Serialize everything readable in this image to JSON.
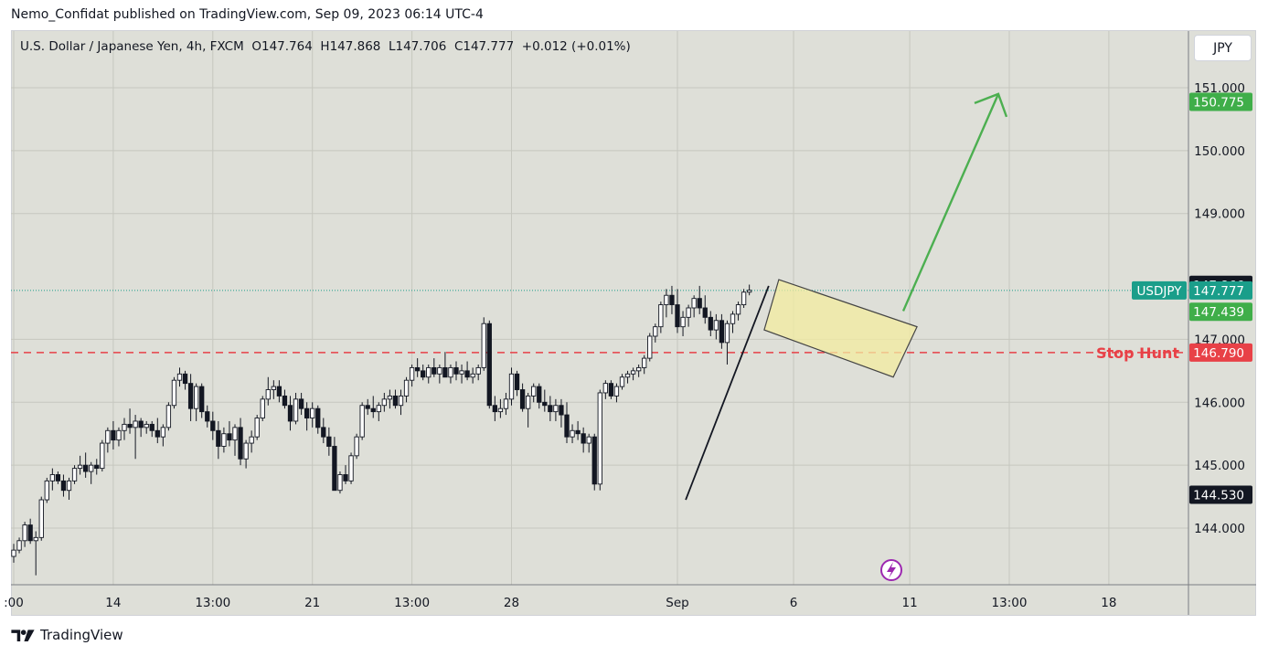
{
  "header": {
    "publisher_line": "Nemo_Confidat published on TradingView.com, Sep 09, 2023 06:14 UTC-4"
  },
  "legend": {
    "symbol": "U.S. Dollar / Japanese Yen, 4h, FXCM",
    "open_label": "O",
    "open": "147.764",
    "high_label": "H",
    "high": "147.868",
    "low_label": "L",
    "low": "147.706",
    "close_label": "C",
    "close": "147.777",
    "change": "+0.012 (+0.01%)"
  },
  "currency_button": "JPY",
  "footer": {
    "brand": "TradingView"
  },
  "chart_data": {
    "type": "candlestick",
    "symbol": "USDJPY",
    "interval": "4h",
    "y_ticks": [
      "144.000",
      "145.000",
      "146.000",
      "147.000",
      "149.000",
      "150.000",
      "151.000"
    ],
    "y_tick_values": [
      144,
      145,
      146,
      147,
      149,
      150,
      151
    ],
    "ylim": [
      143.1,
      151.9
    ],
    "x_ticks": [
      {
        "label": ":00",
        "idx": 0
      },
      {
        "label": "14",
        "idx": 18
      },
      {
        "label": "13:00",
        "idx": 36
      },
      {
        "label": "21",
        "idx": 54
      },
      {
        "label": "13:00",
        "idx": 72
      },
      {
        "label": "28",
        "idx": 90
      },
      {
        "label": "Sep",
        "idx": 120
      },
      {
        "label": "6",
        "idx": 141
      },
      {
        "label": "11",
        "idx": 162
      },
      {
        "label": "13:00",
        "idx": 180
      },
      {
        "label": "18",
        "idx": 198
      }
    ],
    "candles": [
      [
        143.55,
        143.75,
        143.45,
        143.65
      ],
      [
        143.65,
        143.85,
        143.6,
        143.8
      ],
      [
        143.8,
        144.1,
        143.7,
        144.05
      ],
      [
        144.05,
        144.15,
        143.75,
        143.8
      ],
      [
        143.8,
        143.95,
        143.25,
        143.85
      ],
      [
        143.85,
        144.5,
        143.8,
        144.45
      ],
      [
        144.45,
        144.8,
        144.4,
        144.75
      ],
      [
        144.75,
        144.95,
        144.6,
        144.85
      ],
      [
        144.85,
        144.9,
        144.7,
        144.75
      ],
      [
        144.75,
        144.85,
        144.5,
        144.6
      ],
      [
        144.6,
        144.8,
        144.45,
        144.75
      ],
      [
        144.75,
        145.0,
        144.7,
        144.95
      ],
      [
        144.95,
        145.15,
        144.85,
        145.0
      ],
      [
        145.0,
        145.2,
        144.8,
        144.9
      ],
      [
        144.9,
        145.05,
        144.7,
        145.0
      ],
      [
        145.0,
        145.1,
        144.85,
        144.95
      ],
      [
        144.95,
        145.4,
        144.9,
        145.35
      ],
      [
        145.35,
        145.6,
        145.2,
        145.55
      ],
      [
        145.55,
        145.7,
        145.25,
        145.4
      ],
      [
        145.4,
        145.6,
        145.3,
        145.55
      ],
      [
        145.55,
        145.75,
        145.4,
        145.65
      ],
      [
        145.65,
        145.9,
        145.5,
        145.6
      ],
      [
        145.6,
        145.8,
        145.1,
        145.7
      ],
      [
        145.7,
        145.75,
        145.45,
        145.6
      ],
      [
        145.6,
        145.7,
        145.5,
        145.65
      ],
      [
        145.65,
        145.7,
        145.45,
        145.55
      ],
      [
        145.55,
        145.75,
        145.35,
        145.45
      ],
      [
        145.45,
        145.65,
        145.3,
        145.6
      ],
      [
        145.6,
        146.0,
        145.55,
        145.95
      ],
      [
        145.95,
        146.4,
        145.9,
        146.35
      ],
      [
        146.35,
        146.55,
        146.25,
        146.45
      ],
      [
        146.45,
        146.5,
        146.2,
        146.3
      ],
      [
        146.3,
        146.45,
        145.7,
        145.9
      ],
      [
        145.9,
        146.3,
        145.7,
        146.25
      ],
      [
        146.25,
        146.3,
        145.75,
        145.85
      ],
      [
        145.85,
        145.95,
        145.6,
        145.7
      ],
      [
        145.7,
        145.85,
        145.4,
        145.55
      ],
      [
        145.55,
        145.7,
        145.1,
        145.3
      ],
      [
        145.3,
        145.6,
        145.2,
        145.5
      ],
      [
        145.5,
        145.7,
        145.3,
        145.4
      ],
      [
        145.4,
        145.65,
        145.15,
        145.6
      ],
      [
        145.6,
        145.75,
        145.0,
        145.1
      ],
      [
        145.1,
        145.4,
        144.95,
        145.35
      ],
      [
        145.35,
        145.55,
        145.2,
        145.45
      ],
      [
        145.45,
        145.8,
        145.4,
        145.75
      ],
      [
        145.75,
        146.1,
        145.7,
        146.05
      ],
      [
        146.05,
        146.4,
        145.95,
        146.2
      ],
      [
        146.2,
        146.35,
        146.05,
        146.25
      ],
      [
        146.25,
        146.35,
        146.0,
        146.1
      ],
      [
        146.1,
        146.2,
        145.9,
        145.95
      ],
      [
        145.95,
        146.1,
        145.55,
        145.7
      ],
      [
        145.7,
        146.15,
        145.65,
        146.05
      ],
      [
        146.05,
        146.15,
        145.8,
        145.9
      ],
      [
        145.9,
        146.0,
        145.55,
        145.75
      ],
      [
        145.75,
        146.0,
        145.6,
        145.9
      ],
      [
        145.9,
        145.95,
        145.5,
        145.6
      ],
      [
        145.6,
        145.75,
        145.35,
        145.45
      ],
      [
        145.45,
        145.6,
        145.15,
        145.3
      ],
      [
        145.3,
        145.45,
        144.6,
        144.6
      ],
      [
        144.6,
        144.9,
        144.55,
        144.85
      ],
      [
        144.85,
        145.0,
        144.7,
        144.75
      ],
      [
        144.75,
        145.2,
        144.7,
        145.15
      ],
      [
        145.15,
        145.5,
        145.1,
        145.45
      ],
      [
        145.45,
        146.0,
        145.4,
        145.95
      ],
      [
        145.95,
        146.05,
        145.8,
        145.9
      ],
      [
        145.9,
        146.1,
        145.75,
        145.85
      ],
      [
        145.85,
        146.0,
        145.7,
        145.95
      ],
      [
        145.95,
        146.15,
        145.85,
        146.05
      ],
      [
        146.05,
        146.2,
        145.9,
        146.1
      ],
      [
        146.1,
        146.2,
        145.9,
        145.95
      ],
      [
        145.95,
        146.2,
        145.8,
        146.1
      ],
      [
        146.1,
        146.4,
        146.0,
        146.35
      ],
      [
        146.35,
        146.6,
        146.25,
        146.55
      ],
      [
        146.55,
        146.7,
        146.4,
        146.5
      ],
      [
        146.5,
        146.6,
        146.35,
        146.4
      ],
      [
        146.4,
        146.6,
        146.3,
        146.55
      ],
      [
        146.55,
        146.7,
        146.4,
        146.45
      ],
      [
        146.45,
        146.6,
        146.3,
        146.55
      ],
      [
        146.55,
        146.8,
        146.4,
        146.4
      ],
      [
        146.4,
        146.6,
        146.3,
        146.55
      ],
      [
        146.55,
        146.65,
        146.35,
        146.45
      ],
      [
        146.45,
        146.6,
        146.3,
        146.5
      ],
      [
        146.5,
        146.65,
        146.35,
        146.4
      ],
      [
        146.4,
        146.55,
        146.3,
        146.45
      ],
      [
        146.45,
        146.6,
        146.35,
        146.55
      ],
      [
        146.55,
        147.35,
        146.5,
        147.25
      ],
      [
        147.25,
        147.3,
        145.9,
        145.95
      ],
      [
        145.95,
        146.1,
        145.7,
        145.85
      ],
      [
        145.85,
        146.05,
        145.75,
        145.9
      ],
      [
        145.9,
        146.15,
        145.8,
        146.05
      ],
      [
        146.05,
        146.55,
        145.95,
        146.45
      ],
      [
        146.45,
        146.5,
        146.1,
        146.2
      ],
      [
        146.2,
        146.3,
        145.85,
        145.9
      ],
      [
        145.9,
        146.15,
        145.6,
        146.1
      ],
      [
        146.1,
        146.3,
        146.0,
        146.25
      ],
      [
        146.25,
        146.3,
        145.9,
        146.0
      ],
      [
        146.0,
        146.2,
        145.85,
        145.95
      ],
      [
        145.95,
        146.1,
        145.7,
        145.85
      ],
      [
        145.85,
        146.05,
        145.7,
        145.95
      ],
      [
        145.95,
        146.05,
        145.6,
        145.8
      ],
      [
        145.8,
        146.0,
        145.35,
        145.45
      ],
      [
        145.45,
        145.65,
        145.35,
        145.55
      ],
      [
        145.55,
        145.7,
        145.4,
        145.5
      ],
      [
        145.5,
        145.6,
        145.2,
        145.35
      ],
      [
        145.35,
        145.5,
        145.2,
        145.45
      ],
      [
        145.45,
        145.5,
        144.6,
        144.7
      ],
      [
        144.7,
        146.2,
        144.6,
        146.15
      ],
      [
        146.15,
        146.35,
        146.05,
        146.3
      ],
      [
        146.3,
        146.35,
        146.05,
        146.1
      ],
      [
        146.1,
        146.3,
        146.0,
        146.25
      ],
      [
        146.25,
        146.45,
        146.2,
        146.4
      ],
      [
        146.4,
        146.5,
        146.3,
        146.45
      ],
      [
        146.45,
        146.55,
        146.35,
        146.5
      ],
      [
        146.5,
        146.6,
        146.4,
        146.55
      ],
      [
        146.55,
        146.75,
        146.45,
        146.7
      ],
      [
        146.7,
        147.1,
        146.65,
        147.05
      ],
      [
        147.05,
        147.25,
        146.95,
        147.2
      ],
      [
        147.2,
        147.6,
        147.1,
        147.55
      ],
      [
        147.55,
        147.8,
        147.35,
        147.7
      ],
      [
        147.7,
        147.85,
        147.4,
        147.55
      ],
      [
        147.55,
        147.8,
        147.1,
        147.2
      ],
      [
        147.2,
        147.45,
        147.05,
        147.35
      ],
      [
        147.35,
        147.55,
        147.2,
        147.5
      ],
      [
        147.5,
        147.7,
        147.35,
        147.65
      ],
      [
        147.65,
        147.85,
        147.4,
        147.5
      ],
      [
        147.5,
        147.7,
        147.25,
        147.35
      ],
      [
        147.35,
        147.45,
        147.05,
        147.15
      ],
      [
        147.15,
        147.4,
        147.0,
        147.3
      ],
      [
        147.3,
        147.4,
        146.85,
        146.95
      ],
      [
        146.95,
        147.3,
        146.6,
        147.25
      ],
      [
        147.25,
        147.45,
        147.1,
        147.4
      ],
      [
        147.4,
        147.6,
        147.3,
        147.55
      ],
      [
        147.55,
        147.8,
        147.5,
        147.75
      ],
      [
        147.75,
        147.87,
        147.7,
        147.78
      ]
    ],
    "horizontal_levels": [
      {
        "label": "Stop Hunt",
        "value": 146.79,
        "color": "#e84147",
        "style": "dashed"
      },
      {
        "label": "USDJPY",
        "value": 147.777,
        "color": "#1a9e8a",
        "style": "dotted"
      }
    ],
    "price_tags": [
      {
        "text": "150.775",
        "value": 150.775,
        "color": "#3fae49"
      },
      {
        "text": "147.866",
        "value": 147.866,
        "color": "#131722"
      },
      {
        "text": "147.777",
        "value": 147.777,
        "color": "#1a9e8a"
      },
      {
        "text": "147.439",
        "value": 147.439,
        "color": "#3fae49"
      },
      {
        "text": "146.790",
        "value": 146.79,
        "color": "#e84147"
      },
      {
        "text": "144.530",
        "value": 144.53,
        "color": "#131722"
      }
    ],
    "annotations": {
      "channel": {
        "fill": "#f3eca0",
        "stroke": "#444444"
      },
      "trend_line": {
        "color": "#131722"
      },
      "projection_arrow": {
        "color": "#4caf50",
        "target": 150.775
      },
      "symbol_tag": "USDJPY",
      "stop_hunt_label": "Stop Hunt"
    }
  }
}
